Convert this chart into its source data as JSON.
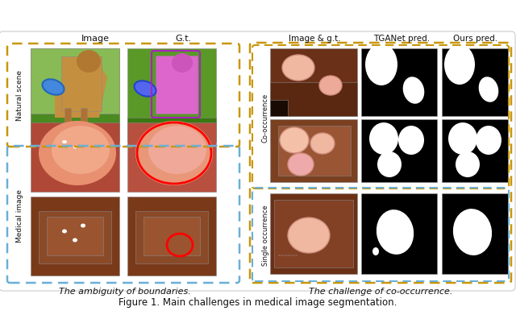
{
  "figure_bg": "#ffffff",
  "colors": {
    "golden": "#C8960C",
    "light_blue": "#6aafd6",
    "red": "#FF0000",
    "magenta": "#cc44cc",
    "white": "#FFFFFF",
    "black": "#000000",
    "text_dark": "#111111",
    "colon_dark": "#7a3a18",
    "colon_mid": "#a05030",
    "colon_light": "#c87850",
    "colon_pink": "#e8a080",
    "polyp_fill": "#f0b8a0",
    "polyp_edge": "#d08060",
    "green_dark": "#4a8a20",
    "green_light": "#6aaa38",
    "dog_color": "#c49040",
    "blue_frisbee": "#4488dd",
    "pink_seg": "#dd66cc",
    "ns_gt_bg": "#5a9828"
  },
  "left_col_labels": [
    "Image",
    "G.t."
  ],
  "right_col_labels": [
    "Image & g.t.",
    "TGANet pred.",
    "Ours pred."
  ],
  "left_row_labels": [
    "Natural scene",
    "Medical image"
  ],
  "right_row_labels": [
    "Co-occurrence",
    "Single occurrence"
  ],
  "left_caption": "The ambiguity of boundaries.",
  "right_caption": "The challenge of co-occurrence.",
  "figure_caption": "Figure 1. Main challenges in medical image segmentation."
}
